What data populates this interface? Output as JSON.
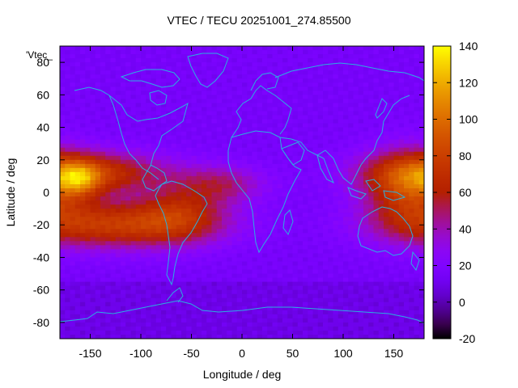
{
  "chart_data": {
    "type": "heatmap",
    "title": "VTEC / TECU 20251001_274.85500",
    "xlabel": "Longitude / deg",
    "ylabel": "Latitude / deg",
    "series_label": "'Vtec_",
    "xlim": [
      -180,
      180
    ],
    "ylim": [
      -90,
      90
    ],
    "x_ticks": [
      -150,
      -100,
      -50,
      0,
      50,
      100,
      150
    ],
    "y_ticks": [
      -80,
      -60,
      -40,
      -20,
      0,
      20,
      40,
      60,
      80
    ],
    "colorbar": {
      "range": [
        -20,
        140
      ],
      "ticks": [
        -20,
        0,
        20,
        40,
        60,
        80,
        100,
        120,
        140
      ],
      "palette": "gnuplot rgbformulae 7,5,15 (black-purple-red-orange-yellow)"
    },
    "grid_resolution_deg": {
      "lon": 5,
      "lat": 2.5
    },
    "approx_field": {
      "background_tecu": 15,
      "features": [
        {
          "name": "northern crest",
          "lon_center": -155,
          "lat_center": 12,
          "peak_tecu": 75
        },
        {
          "name": "southern crest",
          "lon_center": -125,
          "lat_center": -20,
          "peak_tecu": 75
        },
        {
          "name": "central Pacific maximum",
          "lon_center": -160,
          "lat_center": 8,
          "peak_tecu": 115
        },
        {
          "name": "western Pacific / Asia arc",
          "lon_center": 165,
          "lat_center": 2,
          "peak_tecu": 70
        },
        {
          "name": "South America crest",
          "lon_center": -60,
          "lat_center": -12,
          "peak_tecu": 60
        }
      ]
    }
  },
  "colors": {
    "coastline": "#2ab0e0",
    "background": "#ffffff"
  }
}
